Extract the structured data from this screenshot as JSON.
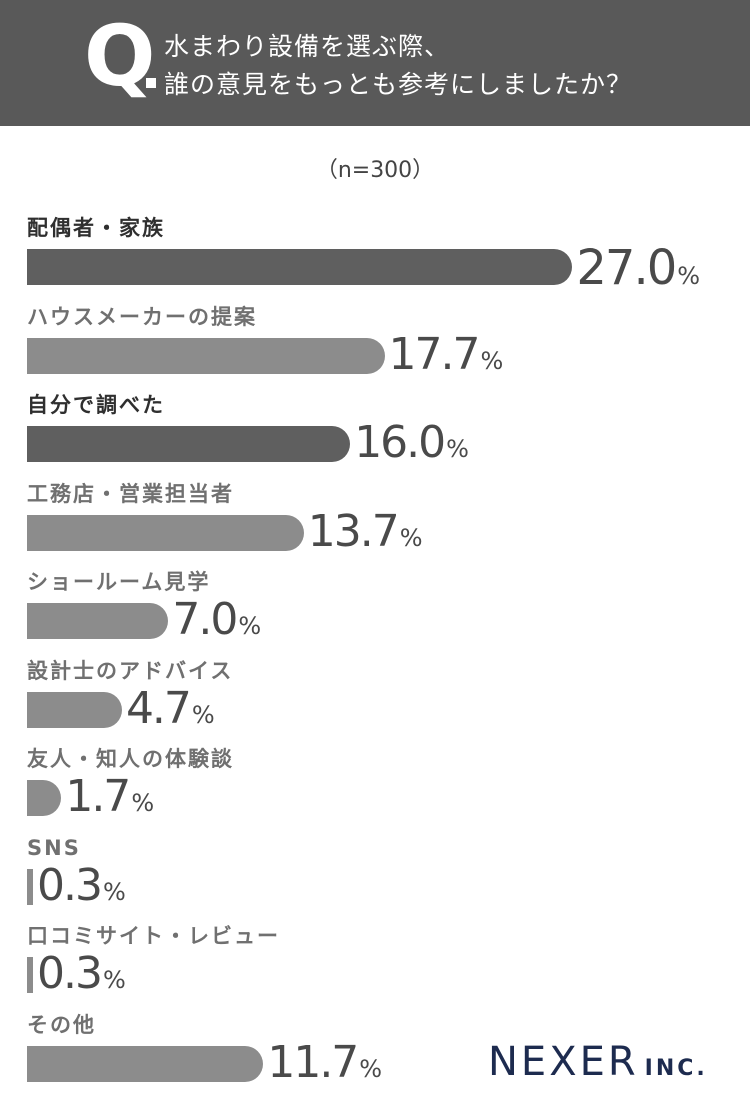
{
  "header": {
    "q_mark": "Q",
    "line1": "水まわり設備を選ぶ際、",
    "line2": "誰の意見をもっとも参考にしましたか？"
  },
  "sample_size": "（n=300）",
  "chart_data": {
    "type": "bar",
    "orientation": "horizontal",
    "categories": [
      "配偶者・家族",
      "ハウスメーカーの提案",
      "自分で調べた",
      "工務店・営業担当者",
      "ショールーム見学",
      "設計士のアドバイス",
      "友人・知人の体験談",
      "SNS",
      "口コミサイト・レビュー",
      "その他"
    ],
    "values": [
      27.0,
      17.7,
      16.0,
      13.7,
      7.0,
      4.7,
      1.7,
      0.3,
      0.3,
      11.7
    ],
    "value_labels": [
      "27.0",
      "17.7",
      "16.0",
      "13.7",
      "7.0",
      "4.7",
      "1.7",
      "0.3",
      "0.3",
      "11.7"
    ],
    "unit": "%",
    "highlight": [
      true,
      false,
      true,
      false,
      false,
      false,
      false,
      false,
      false,
      false
    ],
    "colors": {
      "highlight_bar": "#5f5f5f",
      "normal_bar": "#8c8c8c",
      "highlight_label": "#2f2f2f",
      "normal_label": "#707070"
    }
  },
  "logo": {
    "main": "NEXER",
    "sub": "INC."
  }
}
